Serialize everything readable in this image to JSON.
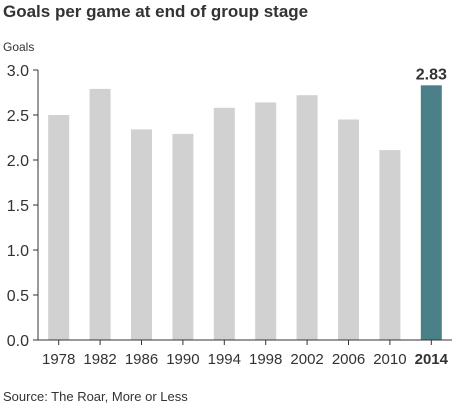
{
  "title": "Goals per game at end of group stage",
  "source": "Source: The Roar, More or Less",
  "colors": {
    "bar": "#d1d1d1",
    "highlight": "#4b8088",
    "axis": "#333333"
  },
  "chart_data": {
    "type": "bar",
    "title": "Goals per game at end of group stage",
    "xlabel": "",
    "ylabel": "Goals",
    "ylim": [
      0,
      3.0
    ],
    "yticks": [
      "0.0",
      "0.5",
      "1.0",
      "1.5",
      "2.0",
      "2.5",
      "3.0"
    ],
    "categories": [
      "1978",
      "1982",
      "1986",
      "1990",
      "1994",
      "1998",
      "2002",
      "2006",
      "2010",
      "2014"
    ],
    "values": [
      2.5,
      2.79,
      2.34,
      2.29,
      2.58,
      2.64,
      2.72,
      2.45,
      2.11,
      2.83
    ],
    "highlight_index": 9,
    "highlight_label": "2.83",
    "grid": false
  }
}
